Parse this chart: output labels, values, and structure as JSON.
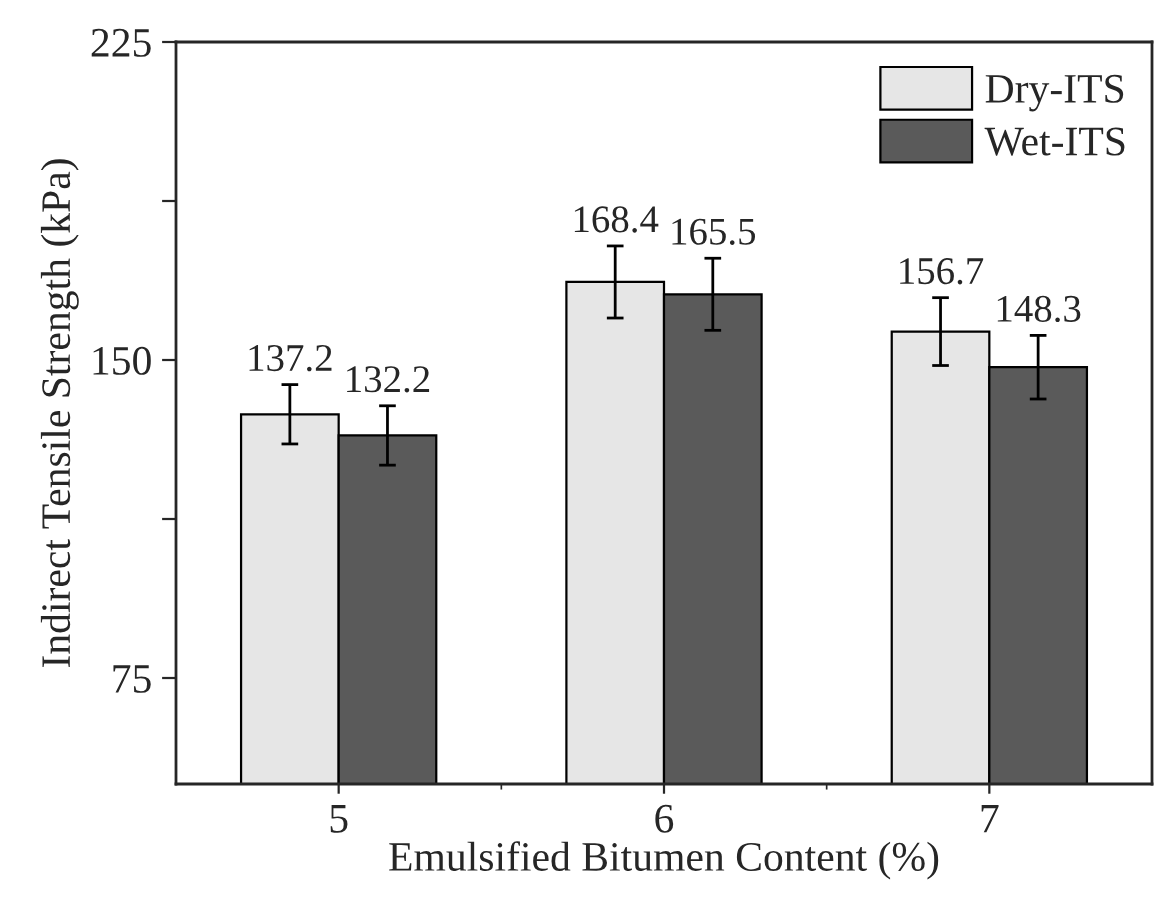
{
  "chart_data": {
    "type": "bar",
    "xlabel": "Emulsified Bitumen Content (%)",
    "ylabel": "Indirect Tensile Strength (kPa)",
    "categories": [
      "5",
      "6",
      "7"
    ],
    "series": [
      {
        "name": "Dry-ITS",
        "color": "#e6e6e6",
        "values": [
          137.2,
          168.4,
          156.7
        ],
        "errors": [
          7,
          8.5,
          8
        ]
      },
      {
        "name": "Wet-ITS",
        "color": "#5a5a5a",
        "values": [
          132.2,
          165.5,
          148.3
        ],
        "errors": [
          7,
          8.5,
          7.5
        ]
      }
    ],
    "ylim": [
      50,
      225
    ],
    "yticks": [
      75,
      {
        "value": 112.5,
        "label": null
      },
      150,
      {
        "value": 187.5,
        "label": null
      },
      225
    ],
    "data_labels": true,
    "legend": "top right",
    "grid": false
  }
}
